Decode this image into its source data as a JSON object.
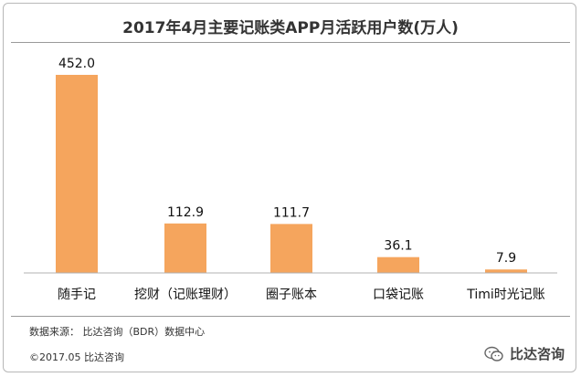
{
  "chart_data": {
    "type": "bar",
    "title": "2017年4月主要记账类APP月活跃用户数(万人)",
    "categories": [
      "随手记",
      "挖财（记账理财）",
      "圈子账本",
      "口袋记账",
      "Timi时光记账"
    ],
    "values": [
      452.0,
      112.9,
      111.7,
      36.1,
      7.9
    ],
    "value_labels": [
      "452.0",
      "112.9",
      "111.7",
      "36.1",
      "7.9"
    ],
    "ylim": [
      0,
      460
    ],
    "grid": false,
    "legend": "none",
    "bar_color": "#f5a55d"
  },
  "footer": {
    "source": "数据来源： 比达咨询（BDR）数据中心",
    "copyright": "©2017.05   比达咨询",
    "watermark": "比达咨询",
    "watermark_icon": "wechat-icon"
  }
}
